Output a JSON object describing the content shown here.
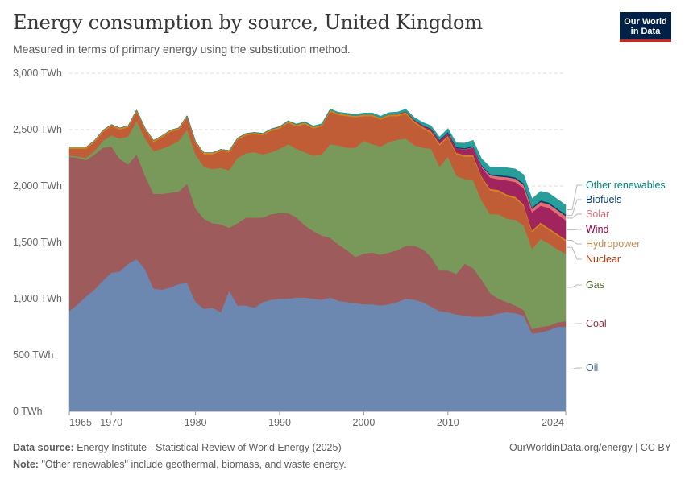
{
  "header": {
    "title": "Energy consumption by source, United Kingdom",
    "subtitle": "Measured in terms of primary energy using the substitution method.",
    "logo_line1": "Our World",
    "logo_line2": "in Data"
  },
  "footer": {
    "source_label": "Data source:",
    "source_text": "Energy Institute - Statistical Review of World Energy (2025)",
    "note_label": "Note:",
    "note_text": "\"Other renewables\" include geothermal, biomass, and waste energy.",
    "credit": "OurWorldinData.org/energy | CC BY"
  },
  "chart_data": {
    "type": "area",
    "stacked": true,
    "x_ticks": [
      1965,
      1970,
      1980,
      1990,
      2000,
      2010,
      2024
    ],
    "y_ticks": [
      0,
      500,
      1000,
      1500,
      2000,
      2500,
      3000
    ],
    "y_tick_labels": [
      "0 TWh",
      "500 TWh",
      "1,000 TWh",
      "1,500 TWh",
      "2,000 TWh",
      "2,500 TWh",
      "3,000 TWh"
    ],
    "ylim": [
      0,
      3000
    ],
    "xlim": [
      1965,
      2024
    ],
    "grid": "horizontal dashed",
    "legend_position": "right (inline labels)",
    "x": [
      1965,
      1966,
      1967,
      1968,
      1969,
      1970,
      1971,
      1972,
      1973,
      1974,
      1975,
      1976,
      1977,
      1978,
      1979,
      1980,
      1981,
      1982,
      1983,
      1984,
      1985,
      1986,
      1987,
      1988,
      1989,
      1990,
      1991,
      1992,
      1993,
      1994,
      1995,
      1996,
      1997,
      1998,
      1999,
      2000,
      2001,
      2002,
      2003,
      2004,
      2005,
      2006,
      2007,
      2008,
      2009,
      2010,
      2011,
      2012,
      2013,
      2014,
      2015,
      2016,
      2017,
      2018,
      2019,
      2020,
      2021,
      2022,
      2023,
      2024
    ],
    "series": [
      {
        "name": "Oil",
        "color": "#6d88b0",
        "values": [
          890,
          950,
          1020,
          1080,
          1160,
          1230,
          1240,
          1310,
          1350,
          1260,
          1090,
          1080,
          1100,
          1130,
          1140,
          970,
          910,
          920,
          880,
          1070,
          940,
          940,
          920,
          970,
          990,
          1000,
          1000,
          1010,
          1010,
          1000,
          990,
          1010,
          980,
          970,
          960,
          950,
          950,
          940,
          950,
          970,
          1000,
          990,
          970,
          930,
          890,
          880,
          860,
          850,
          840,
          840,
          850,
          870,
          880,
          870,
          850,
          690,
          700,
          720,
          750,
          750
        ]
      },
      {
        "name": "Coal",
        "color": "#9e5b5c",
        "values": [
          1370,
          1300,
          1210,
          1200,
          1180,
          1120,
          1000,
          880,
          930,
          830,
          840,
          850,
          840,
          820,
          880,
          830,
          800,
          750,
          780,
          560,
          730,
          780,
          800,
          750,
          760,
          760,
          760,
          710,
          640,
          600,
          570,
          530,
          500,
          460,
          410,
          450,
          460,
          450,
          460,
          460,
          470,
          480,
          470,
          440,
          360,
          370,
          360,
          460,
          430,
          330,
          200,
          130,
          90,
          70,
          50,
          40,
          50,
          40,
          40,
          50
        ]
      },
      {
        "name": "Gas",
        "color": "#78995a",
        "values": [
          10,
          10,
          20,
          30,
          60,
          100,
          180,
          250,
          300,
          330,
          380,
          400,
          420,
          450,
          480,
          480,
          460,
          480,
          500,
          510,
          580,
          570,
          580,
          560,
          550,
          570,
          610,
          610,
          650,
          670,
          720,
          830,
          880,
          910,
          970,
          1000,
          960,
          960,
          980,
          980,
          950,
          890,
          900,
          960,
          920,
          1010,
          870,
          750,
          780,
          700,
          700,
          750,
          740,
          760,
          750,
          710,
          780,
          730,
          650,
          600
        ]
      },
      {
        "name": "Nuclear",
        "color": "#c15d36",
        "values": [
          60,
          70,
          80,
          80,
          80,
          80,
          80,
          80,
          80,
          80,
          80,
          100,
          120,
          100,
          110,
          100,
          110,
          130,
          150,
          160,
          160,
          160,
          160,
          170,
          190,
          180,
          190,
          200,
          250,
          240,
          250,
          290,
          270,
          280,
          270,
          220,
          250,
          240,
          230,
          210,
          220,
          200,
          170,
          140,
          190,
          170,
          190,
          200,
          210,
          200,
          210,
          200,
          200,
          190,
          170,
          150,
          130,
          120,
          120,
          110
        ]
      },
      {
        "name": "Hydropower",
        "color": "#d3851a",
        "values": [
          15,
          15,
          15,
          15,
          15,
          15,
          15,
          15,
          15,
          15,
          15,
          15,
          15,
          15,
          15,
          15,
          15,
          15,
          15,
          15,
          15,
          15,
          15,
          15,
          15,
          15,
          15,
          15,
          15,
          15,
          15,
          15,
          15,
          15,
          15,
          15,
          15,
          15,
          15,
          15,
          15,
          15,
          15,
          15,
          15,
          15,
          15,
          15,
          15,
          15,
          15,
          15,
          15,
          15,
          15,
          15,
          15,
          15,
          15,
          15
        ]
      },
      {
        "name": "Wind",
        "color": "#a2245e",
        "values": [
          0,
          0,
          0,
          0,
          0,
          0,
          0,
          0,
          0,
          0,
          0,
          0,
          0,
          0,
          0,
          0,
          0,
          0,
          0,
          0,
          0,
          0,
          0,
          0,
          0,
          0,
          0,
          0,
          0,
          0,
          0,
          0,
          0,
          0,
          0,
          0,
          0,
          0,
          1,
          4,
          6,
          10,
          12,
          18,
          24,
          25,
          40,
          50,
          65,
          80,
          100,
          95,
          125,
          130,
          145,
          160,
          150,
          180,
          175,
          170
        ]
      },
      {
        "name": "Solar",
        "color": "#e56e75",
        "values": [
          0,
          0,
          0,
          0,
          0,
          0,
          0,
          0,
          0,
          0,
          0,
          0,
          0,
          0,
          0,
          0,
          0,
          0,
          0,
          0,
          0,
          0,
          0,
          0,
          0,
          0,
          0,
          0,
          0,
          0,
          0,
          0,
          0,
          0,
          0,
          0,
          0,
          0,
          0,
          0,
          0,
          0,
          0,
          0,
          0,
          0,
          1,
          3,
          5,
          10,
          20,
          25,
          28,
          30,
          30,
          32,
          32,
          34,
          36,
          38
        ]
      },
      {
        "name": "Biofuels",
        "color": "#0b3a6b",
        "values": [
          0,
          0,
          0,
          0,
          0,
          0,
          0,
          0,
          0,
          0,
          0,
          0,
          0,
          0,
          0,
          0,
          0,
          0,
          0,
          0,
          0,
          0,
          0,
          0,
          0,
          0,
          0,
          0,
          0,
          0,
          0,
          0,
          0,
          0,
          0,
          0,
          0,
          0,
          0,
          0,
          1,
          2,
          4,
          6,
          8,
          9,
          9,
          8,
          9,
          10,
          10,
          11,
          12,
          12,
          13,
          12,
          14,
          14,
          13,
          14
        ]
      },
      {
        "name": "Other renewables",
        "color": "#289e9a",
        "values": [
          0,
          0,
          0,
          0,
          0,
          0,
          0,
          0,
          0,
          0,
          0,
          0,
          0,
          0,
          0,
          0,
          0,
          0,
          0,
          0,
          2,
          2,
          2,
          3,
          3,
          4,
          5,
          6,
          7,
          8,
          8,
          9,
          10,
          11,
          12,
          13,
          14,
          15,
          16,
          18,
          20,
          22,
          24,
          26,
          28,
          32,
          38,
          45,
          52,
          58,
          65,
          70,
          72,
          75,
          78,
          78,
          82,
          84,
          85,
          85
        ]
      }
    ]
  }
}
